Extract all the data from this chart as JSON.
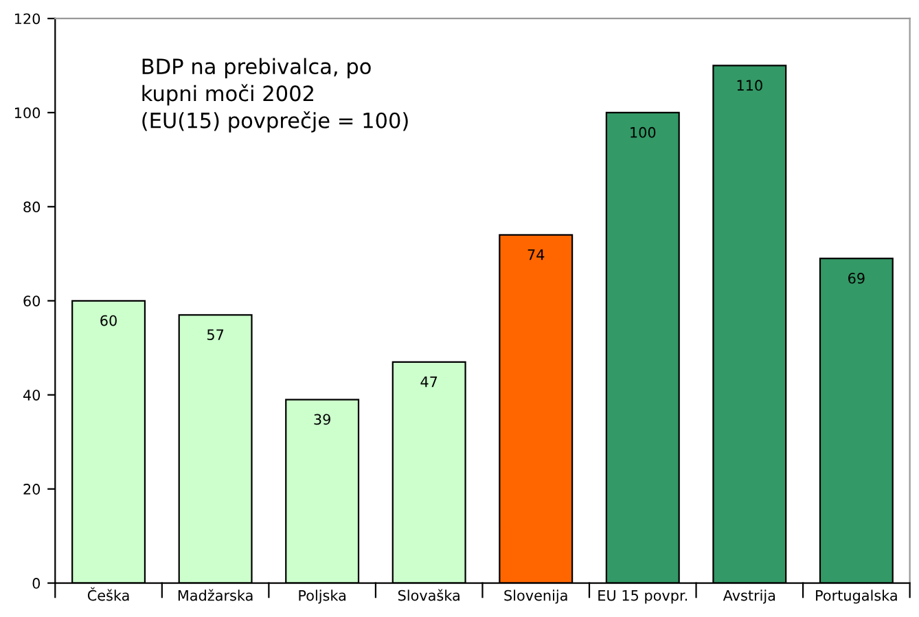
{
  "chart_data": {
    "type": "bar",
    "title": "BDP na prebivalca, po\nkupni moči 2002\n(EU(15) povprečje = 100)",
    "categories": [
      "Češka",
      "Madžarska",
      "Poljska",
      "Slovaška",
      "Slovenija",
      "EU 15 povpr.",
      "Avstrija",
      "Portugalska"
    ],
    "values": [
      60,
      57,
      39,
      47,
      74,
      100,
      110,
      69
    ],
    "colors": [
      "#ccffcc",
      "#ccffcc",
      "#ccffcc",
      "#ccffcc",
      "#ff6600",
      "#339966",
      "#339966",
      "#339966"
    ],
    "ylim": [
      0,
      120
    ],
    "yticks": [
      0,
      20,
      40,
      60,
      80,
      100,
      120
    ],
    "grid": false,
    "data_labels": true
  }
}
